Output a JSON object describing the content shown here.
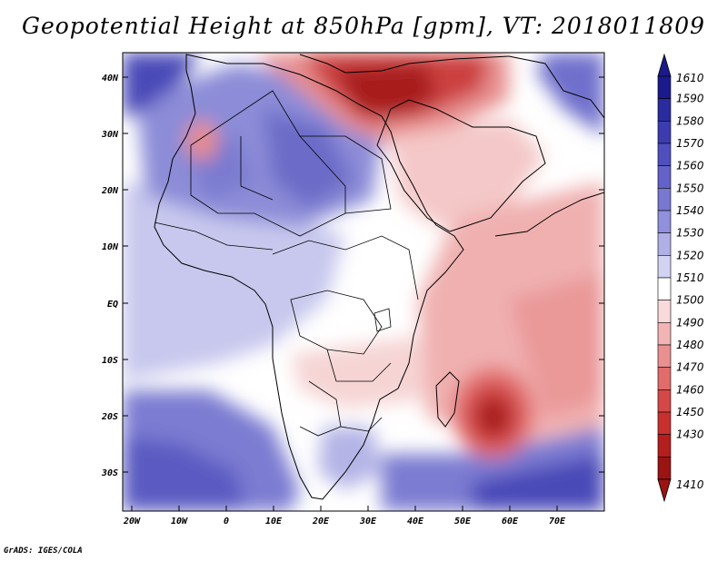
{
  "title": "Geopotential Height at 850hPa [gpm], VT: 2018011809",
  "credit": "GrADS: IGES/COLA",
  "lat_ticks": [
    "40N",
    "30N",
    "20N",
    "10N",
    "EQ",
    "10S",
    "20S",
    "30S"
  ],
  "lon_ticks": [
    "20W",
    "10W",
    "0",
    "10E",
    "20E",
    "30E",
    "40E",
    "50E",
    "60E",
    "70E"
  ],
  "colorbar": {
    "levels": [
      "1610",
      "1590",
      "1580",
      "1570",
      "1560",
      "1550",
      "1540",
      "1530",
      "1520",
      "1510",
      "1500",
      "1490",
      "1480",
      "1470",
      "1460",
      "1450",
      "1430",
      "1410"
    ],
    "colors": [
      "#1a1a8c",
      "#2b2ba0",
      "#3c3cb0",
      "#4f4fbe",
      "#6262c8",
      "#7878d2",
      "#9090dc",
      "#b0b0e6",
      "#d2d2f2",
      "#ffffff",
      "#f8dada",
      "#f2b4b4",
      "#ea9090",
      "#e06c6c",
      "#d44848",
      "#c83030",
      "#b41e1e",
      "#9a1414"
    ]
  },
  "map_labels": {
    "projection": "lat-lon",
    "domain": "Africa and Arabian Sea"
  }
}
